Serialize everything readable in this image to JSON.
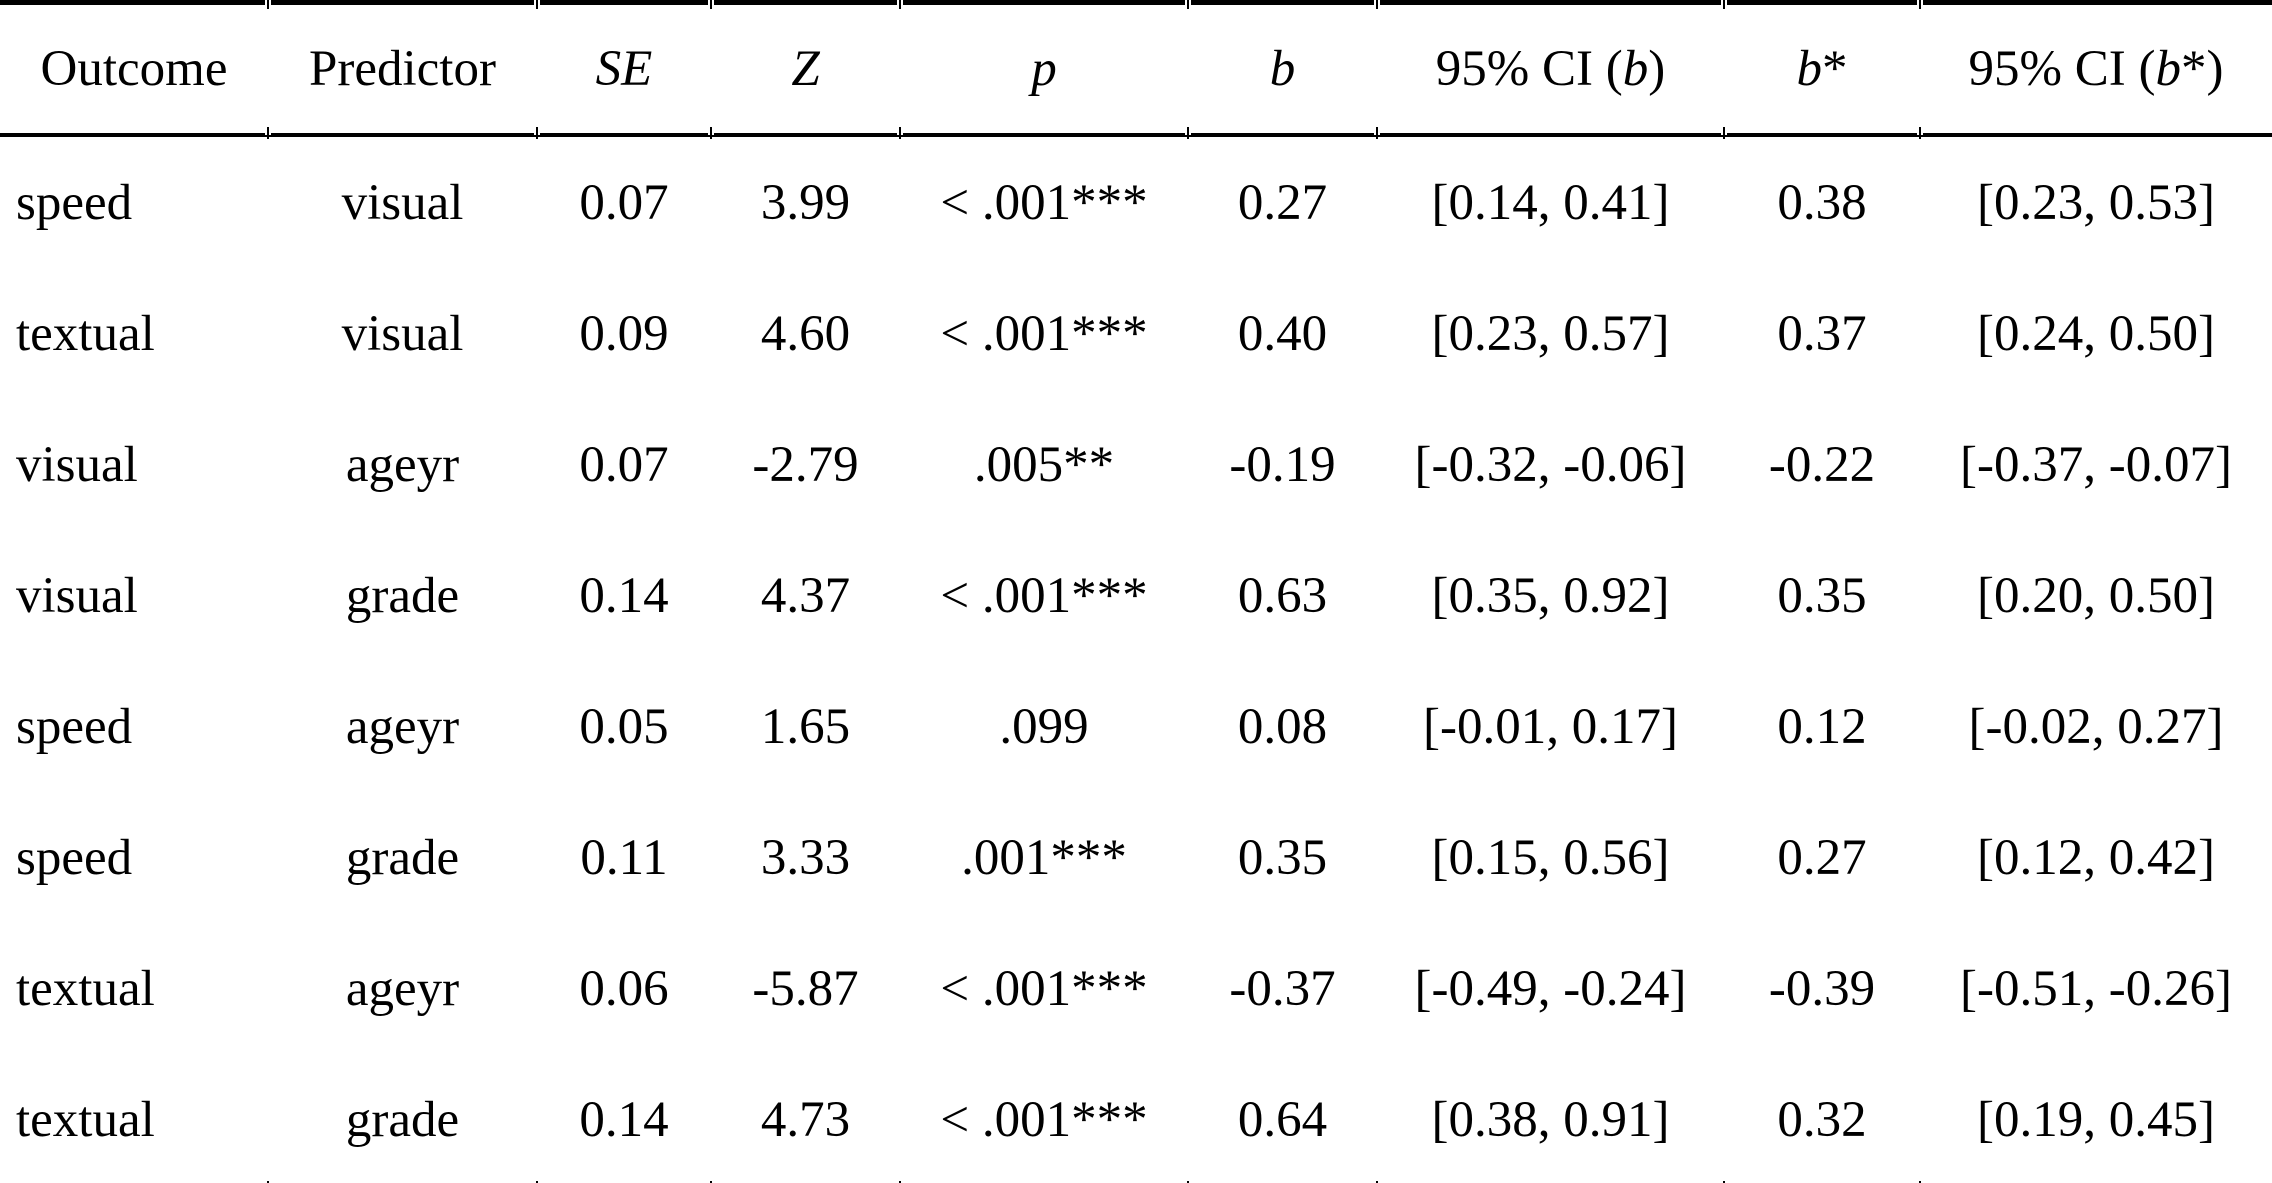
{
  "colors": {
    "background": "#ffffff",
    "text": "#000000",
    "rule": "#000000"
  },
  "table": {
    "columns": [
      {
        "id": "outcome",
        "header_segments": [
          {
            "text": "Outcome",
            "italic": false
          }
        ]
      },
      {
        "id": "predictor",
        "header_segments": [
          {
            "text": "Predictor",
            "italic": false
          }
        ]
      },
      {
        "id": "se",
        "header_segments": [
          {
            "text": "SE",
            "italic": true
          }
        ]
      },
      {
        "id": "z",
        "header_segments": [
          {
            "text": "Z",
            "italic": true
          }
        ]
      },
      {
        "id": "p",
        "header_segments": [
          {
            "text": "p",
            "italic": true
          }
        ]
      },
      {
        "id": "b",
        "header_segments": [
          {
            "text": "b",
            "italic": true
          }
        ]
      },
      {
        "id": "ci_b",
        "header_segments": [
          {
            "text": "95% CI (",
            "italic": false
          },
          {
            "text": "b",
            "italic": true
          },
          {
            "text": ")",
            "italic": false
          }
        ]
      },
      {
        "id": "b_star",
        "header_segments": [
          {
            "text": "b",
            "italic": true
          },
          {
            "text": "*",
            "italic": false
          }
        ]
      },
      {
        "id": "ci_b_star",
        "header_segments": [
          {
            "text": "95% CI (",
            "italic": false
          },
          {
            "text": "b",
            "italic": true
          },
          {
            "text": "*)",
            "italic": false
          }
        ]
      }
    ],
    "rows": [
      {
        "outcome": "speed",
        "predictor": "visual",
        "se": "0.07",
        "z": "3.99",
        "p": "< .001***",
        "b": "0.27",
        "ci_b": "[0.14, 0.41]",
        "b_star": "0.38",
        "ci_b_star": "[0.23, 0.53]"
      },
      {
        "outcome": "textual",
        "predictor": "visual",
        "se": "0.09",
        "z": "4.60",
        "p": "< .001***",
        "b": "0.40",
        "ci_b": "[0.23, 0.57]",
        "b_star": "0.37",
        "ci_b_star": "[0.24, 0.50]"
      },
      {
        "outcome": "visual",
        "predictor": "ageyr",
        "se": "0.07",
        "z": "-2.79",
        "p": ".005**",
        "b": "-0.19",
        "ci_b": "[-0.32, -0.06]",
        "b_star": "-0.22",
        "ci_b_star": "[-0.37, -0.07]"
      },
      {
        "outcome": "visual",
        "predictor": "grade",
        "se": "0.14",
        "z": "4.37",
        "p": "< .001***",
        "b": "0.63",
        "ci_b": "[0.35, 0.92]",
        "b_star": "0.35",
        "ci_b_star": "[0.20, 0.50]"
      },
      {
        "outcome": "speed",
        "predictor": "ageyr",
        "se": "0.05",
        "z": "1.65",
        "p": ".099",
        "b": "0.08",
        "ci_b": "[-0.01, 0.17]",
        "b_star": "0.12",
        "ci_b_star": "[-0.02, 0.27]"
      },
      {
        "outcome": "speed",
        "predictor": "grade",
        "se": "0.11",
        "z": "3.33",
        "p": ".001***",
        "b": "0.35",
        "ci_b": "[0.15, 0.56]",
        "b_star": "0.27",
        "ci_b_star": "[0.12, 0.42]"
      },
      {
        "outcome": "textual",
        "predictor": "ageyr",
        "se": "0.06",
        "z": "-5.87",
        "p": "< .001***",
        "b": "-0.37",
        "ci_b": "[-0.49, -0.24]",
        "b_star": "-0.39",
        "ci_b_star": "[-0.51, -0.26]"
      },
      {
        "outcome": "textual",
        "predictor": "grade",
        "se": "0.14",
        "z": "4.73",
        "p": "< .001***",
        "b": "0.64",
        "ci_b": "[0.38, 0.91]",
        "b_star": "0.32",
        "ci_b_star": "[0.19, 0.45]"
      }
    ]
  }
}
